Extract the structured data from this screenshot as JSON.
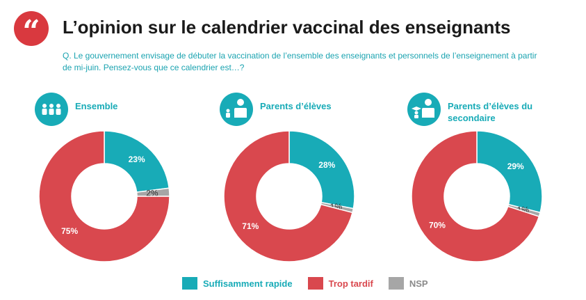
{
  "title": "L’opinion sur le calendrier vaccinal des enseignants",
  "question": "Q. Le gouvernement envisage de débuter la vaccination de l’ensemble des enseignants et personnels de l’enseignement à partir de mi-juin. Pensez-vous que ce calendrier est…?",
  "colors": {
    "rapide": "#18abb7",
    "tardif": "#d9484e",
    "nsp": "#a6a6a6",
    "accent": "#d9393f"
  },
  "chart_data": [
    {
      "type": "pie",
      "title": "Ensemble",
      "icon": "group-people-icon",
      "categories": [
        "Suffisamment rapide",
        "NSP",
        "Trop tardif"
      ],
      "values": [
        23,
        2,
        75
      ],
      "labels": [
        "23%",
        "2%",
        "75%"
      ]
    },
    {
      "type": "pie",
      "title": "Parents d’élèves",
      "icon": "parent-children-icon",
      "categories": [
        "Suffisamment rapide",
        "NSP",
        "Trop tardif"
      ],
      "values": [
        28,
        1,
        71
      ],
      "labels": [
        "28%",
        "1%",
        "71%"
      ]
    },
    {
      "type": "pie",
      "title": "Parents d’élèves du secondaire",
      "icon": "parent-graduate-icon",
      "categories": [
        "Suffisamment rapide",
        "NSP",
        "Trop tardif"
      ],
      "values": [
        29,
        1,
        70
      ],
      "labels": [
        "29%",
        "1%",
        "70%"
      ]
    }
  ],
  "legend": [
    {
      "label": "Suffisamment rapide",
      "color": "#18abb7"
    },
    {
      "label": "Trop tardif",
      "color": "#d9484e"
    },
    {
      "label": "NSP",
      "color": "#a6a6a6"
    }
  ]
}
